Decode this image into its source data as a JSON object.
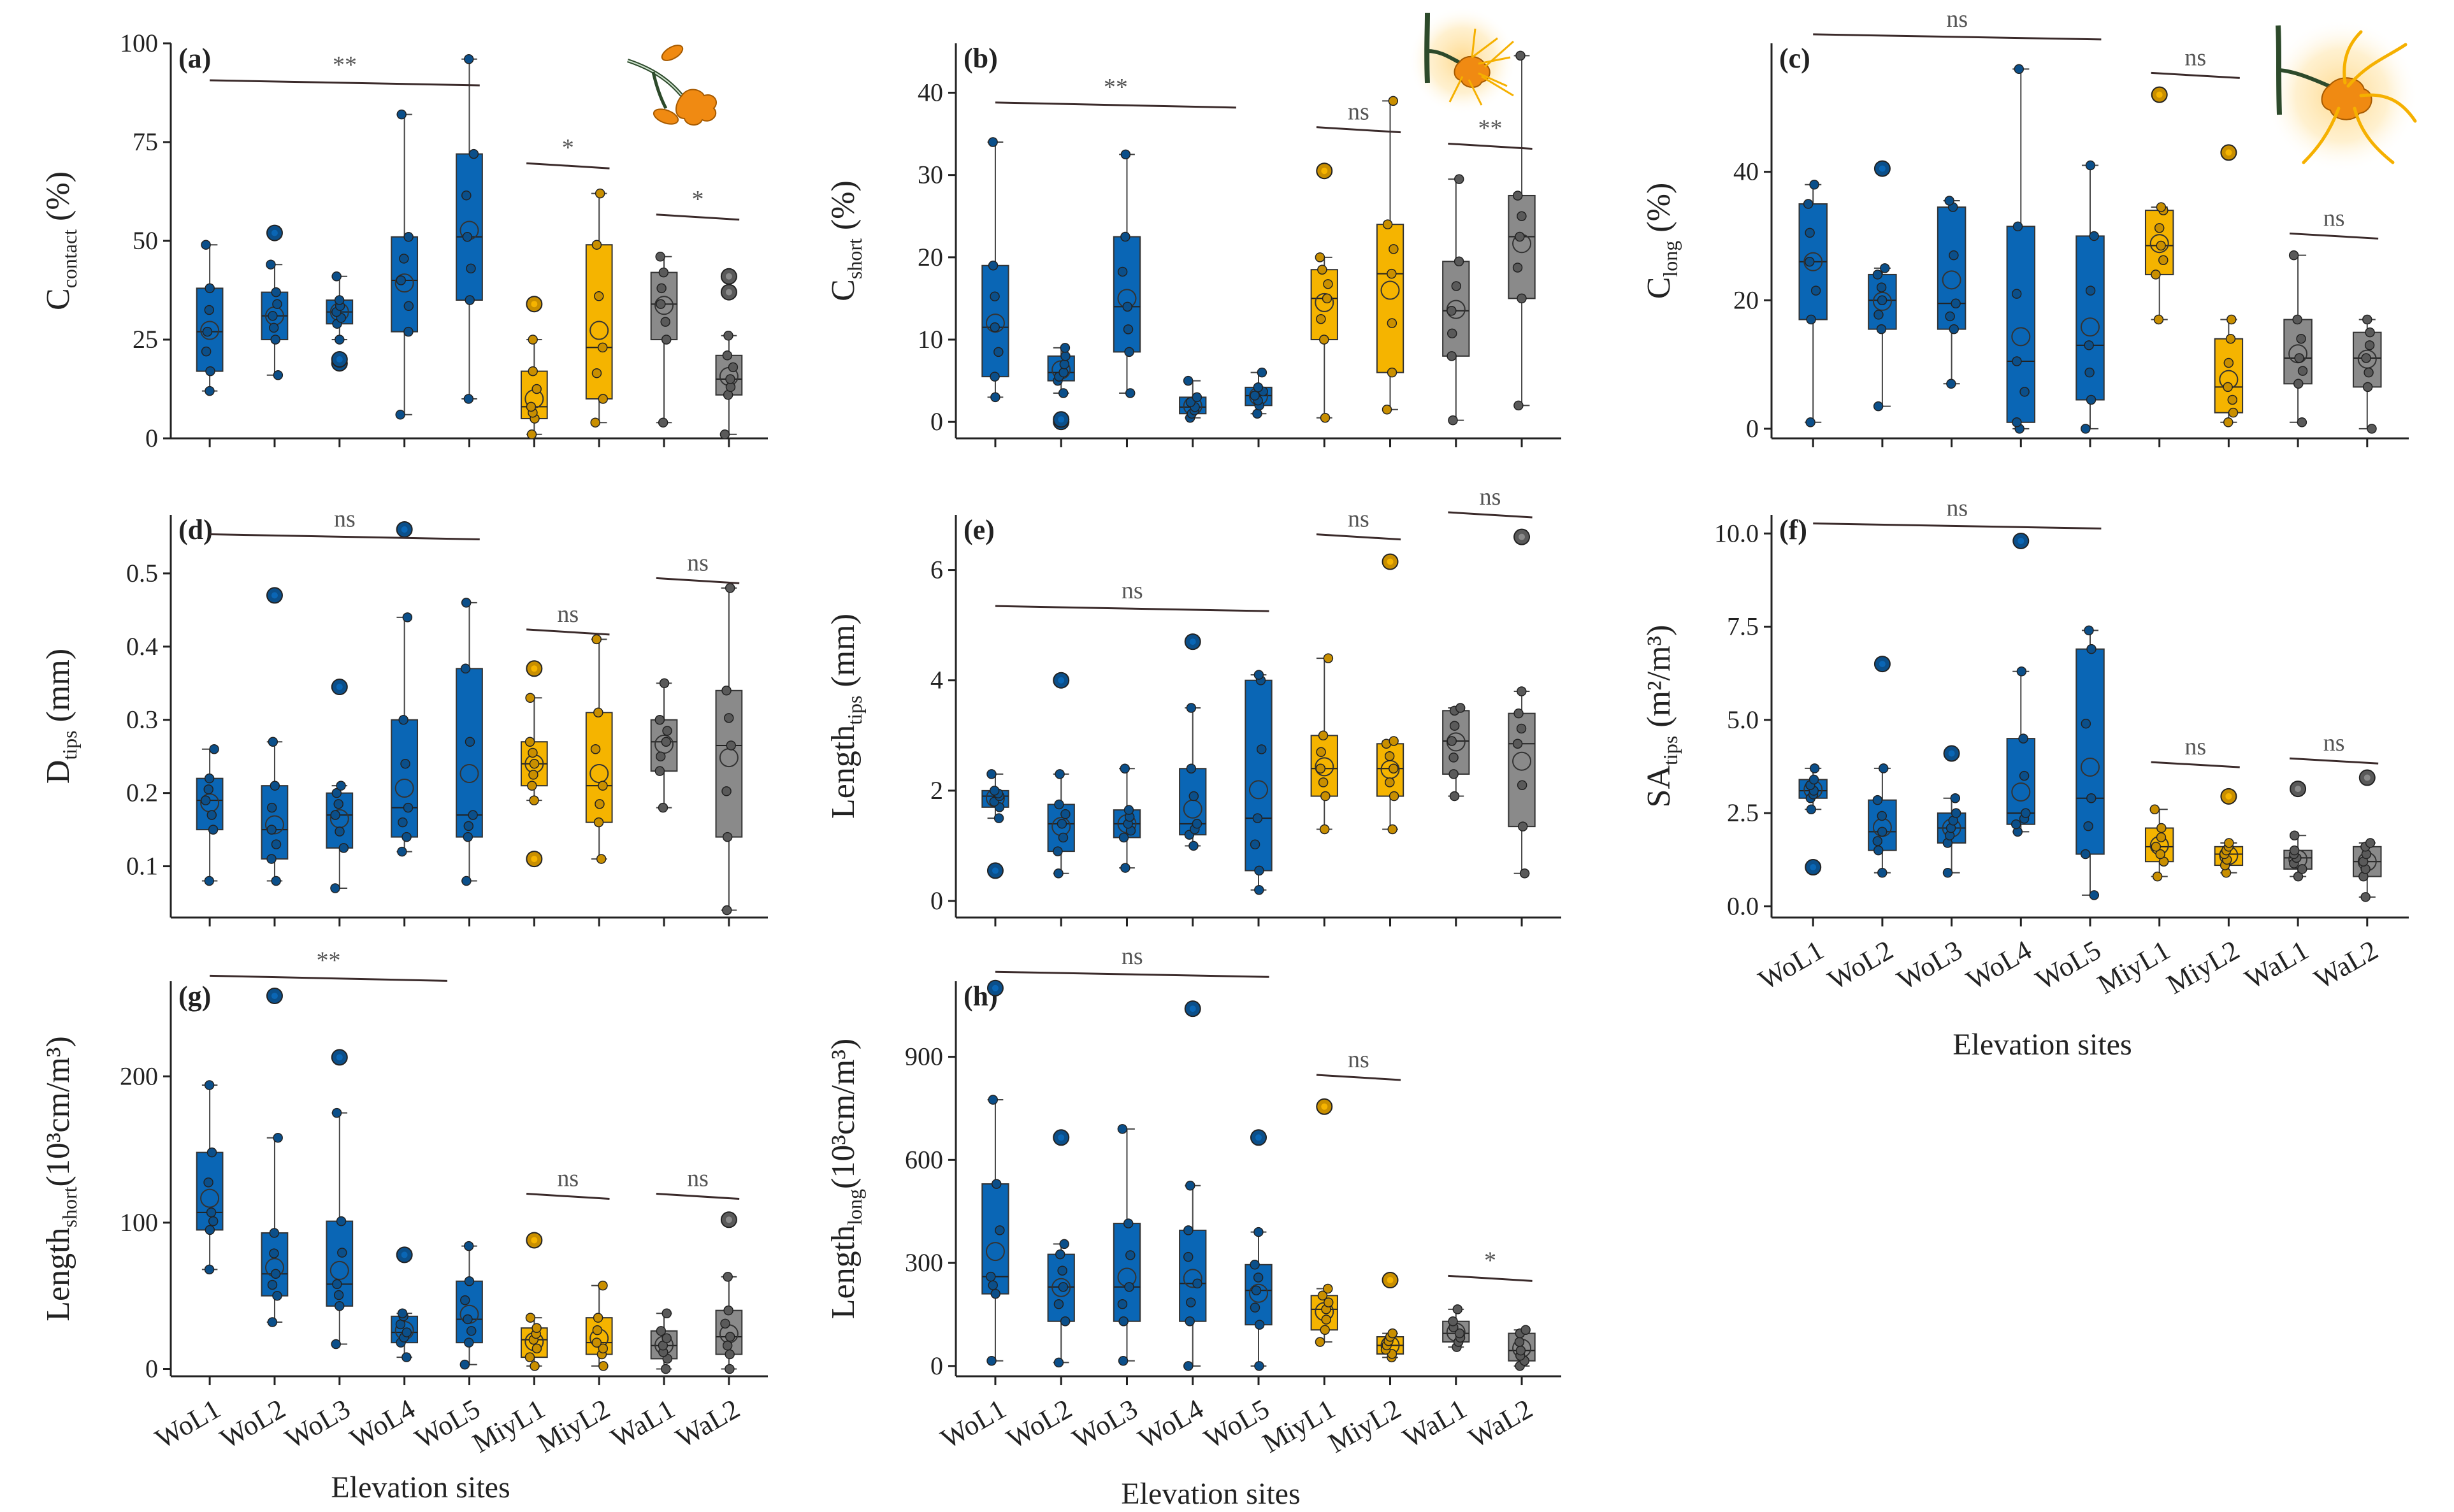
{
  "sites": [
    "WoL1",
    "WoL2",
    "WoL3",
    "WoL4",
    "WoL5",
    "MiyL1",
    "MiyL2",
    "WaL1",
    "WaL2"
  ],
  "group_colors": {
    "Wo": "#0a66b5",
    "Miy": "#f5b400",
    "Wa": "#8a8a8a"
  },
  "point_colors": {
    "Wo": "#0b4f8a",
    "Miy": "#c98f00",
    "Wa": "#5a5a5a"
  },
  "shown_xlabel": "Elevation sites",
  "icons": [
    "contact-exploration-icon",
    "short-distance-exploration-icon",
    "long-distance-exploration-icon"
  ],
  "chart_data": [
    {
      "type": "box",
      "panel": "(a)",
      "ylabel_main": "C",
      "ylabel_sub": "contact",
      "ylabel_unit": " (%)",
      "ylim": [
        0,
        100
      ],
      "yticks": [
        0,
        25,
        50,
        75,
        100
      ],
      "categories": [
        "WoL1",
        "WoL2",
        "WoL3",
        "WoL4",
        "WoL5",
        "MiyL1",
        "MiyL2",
        "WaL1",
        "WaL2"
      ],
      "boxes": [
        {
          "min": 12,
          "q1": 17,
          "median": 27,
          "q3": 38,
          "max": 49
        },
        {
          "min": 16,
          "q1": 25,
          "median": 31,
          "q3": 37,
          "max": 44,
          "outliers": [
            52
          ]
        },
        {
          "min": 25,
          "q1": 29,
          "median": 32,
          "q3": 35,
          "max": 41,
          "outliers": [
            19,
            20
          ]
        },
        {
          "min": 6,
          "q1": 27,
          "median": 40,
          "q3": 51,
          "max": 82
        },
        {
          "min": 10,
          "q1": 35,
          "median": 51,
          "q3": 72,
          "max": 96
        },
        {
          "min": 1,
          "q1": 5,
          "median": 8,
          "q3": 17,
          "max": 25,
          "outliers": [
            34
          ]
        },
        {
          "min": 4,
          "q1": 10,
          "median": 23,
          "q3": 49,
          "max": 62
        },
        {
          "min": 4,
          "q1": 25,
          "median": 34,
          "q3": 42,
          "max": 46
        },
        {
          "min": 1,
          "q1": 11,
          "median": 15,
          "q3": 21,
          "max": 26,
          "outliers": [
            37,
            41
          ]
        }
      ],
      "significance": [
        {
          "from": 0,
          "to": 4,
          "label": "**",
          "y": 90
        },
        {
          "from": 5,
          "to": 6,
          "label": "*",
          "y": 69
        },
        {
          "from": 7,
          "to": 8,
          "label": "*",
          "y": 56
        }
      ]
    },
    {
      "type": "box",
      "panel": "(b)",
      "ylabel_main": "C",
      "ylabel_sub": "short",
      "ylabel_unit": " (%)",
      "ylim": [
        -2,
        46
      ],
      "yticks": [
        0,
        10,
        20,
        30,
        40
      ],
      "categories": [
        "WoL1",
        "WoL2",
        "WoL3",
        "WoL4",
        "WoL5",
        "MiyL1",
        "MiyL2",
        "WaL1",
        "WaL2"
      ],
      "boxes": [
        {
          "min": 3,
          "q1": 5.5,
          "median": 11.5,
          "q3": 19,
          "max": 34
        },
        {
          "min": 3.5,
          "q1": 5,
          "median": 6,
          "q3": 8,
          "max": 9,
          "outliers": [
            0,
            0.3
          ]
        },
        {
          "min": 3.5,
          "q1": 8.5,
          "median": 14,
          "q3": 22.5,
          "max": 32.5
        },
        {
          "min": 0.5,
          "q1": 1,
          "median": 1.8,
          "q3": 3,
          "max": 5
        },
        {
          "min": 1,
          "q1": 2,
          "median": 3.2,
          "q3": 4.2,
          "max": 6
        },
        {
          "min": 0.5,
          "q1": 10,
          "median": 15,
          "q3": 18.5,
          "max": 20,
          "outliers": [
            30.5
          ]
        },
        {
          "min": 1.5,
          "q1": 6,
          "median": 18,
          "q3": 24,
          "max": 39
        },
        {
          "min": 0.2,
          "q1": 8,
          "median": 13.5,
          "q3": 19.5,
          "max": 29.5
        },
        {
          "min": 2,
          "q1": 15,
          "median": 22.5,
          "q3": 27.5,
          "max": 44.5
        }
      ],
      "significance": [
        {
          "from": 0,
          "to": 3.5,
          "label": "**",
          "y": 38.5
        },
        {
          "from": 5,
          "to": 6,
          "label": "ns",
          "y": 35.5
        },
        {
          "from": 7,
          "to": 8,
          "label": "**",
          "y": 33.5
        }
      ]
    },
    {
      "type": "box",
      "panel": "(c)",
      "ylabel_main": "C",
      "ylabel_sub": "long",
      "ylabel_unit": " (%)",
      "ylim": [
        -1.5,
        60
      ],
      "yticks": [
        0,
        20,
        40
      ],
      "categories": [
        "WoL1",
        "WoL2",
        "WoL3",
        "WoL4",
        "WoL5",
        "MiyL1",
        "MiyL2",
        "WaL1",
        "WaL2"
      ],
      "boxes": [
        {
          "min": 1,
          "q1": 17,
          "median": 26,
          "q3": 35,
          "max": 38
        },
        {
          "min": 3.5,
          "q1": 15.5,
          "median": 20,
          "q3": 24,
          "max": 25,
          "outliers": [
            40.5
          ]
        },
        {
          "min": 7,
          "q1": 15.5,
          "median": 19.5,
          "q3": 34.5,
          "max": 35.5
        },
        {
          "min": 0,
          "q1": 1,
          "median": 10.5,
          "q3": 31.5,
          "max": 56
        },
        {
          "min": 0,
          "q1": 4.5,
          "median": 13,
          "q3": 30,
          "max": 41
        },
        {
          "min": 17,
          "q1": 24,
          "median": 28.5,
          "q3": 34,
          "max": 34.5,
          "outliers": [
            52
          ]
        },
        {
          "min": 1,
          "q1": 2.5,
          "median": 6.5,
          "q3": 14,
          "max": 17,
          "outliers": [
            43
          ]
        },
        {
          "min": 1,
          "q1": 7,
          "median": 11,
          "q3": 17,
          "max": 27
        },
        {
          "min": 0,
          "q1": 6.5,
          "median": 11,
          "q3": 15,
          "max": 17
        }
      ],
      "significance": [
        {
          "from": 0,
          "to": 4,
          "label": "ns",
          "y": 61
        },
        {
          "from": 5,
          "to": 6,
          "label": "ns",
          "y": 55
        },
        {
          "from": 7,
          "to": 8,
          "label": "ns",
          "y": 30
        }
      ]
    },
    {
      "type": "box",
      "panel": "(d)",
      "ylabel_main": "D",
      "ylabel_sub": "tips",
      "ylabel_unit": " (mm)",
      "ylim": [
        0.03,
        0.58
      ],
      "yticks": [
        0.1,
        0.2,
        0.3,
        0.4,
        0.5
      ],
      "categories": [
        "WoL1",
        "WoL2",
        "WoL3",
        "WoL4",
        "WoL5",
        "MiyL1",
        "MiyL2",
        "WaL1",
        "WaL2"
      ],
      "boxes": [
        {
          "min": 0.08,
          "q1": 0.15,
          "median": 0.19,
          "q3": 0.22,
          "max": 0.26
        },
        {
          "min": 0.08,
          "q1": 0.11,
          "median": 0.15,
          "q3": 0.21,
          "max": 0.27,
          "outliers": [
            0.47
          ]
        },
        {
          "min": 0.07,
          "q1": 0.125,
          "median": 0.17,
          "q3": 0.2,
          "max": 0.21,
          "outliers": [
            0.345
          ]
        },
        {
          "min": 0.12,
          "q1": 0.14,
          "median": 0.18,
          "q3": 0.3,
          "max": 0.44,
          "outliers": [
            0.56
          ]
        },
        {
          "min": 0.08,
          "q1": 0.14,
          "median": 0.17,
          "q3": 0.37,
          "max": 0.46
        },
        {
          "min": 0.19,
          "q1": 0.21,
          "median": 0.24,
          "q3": 0.27,
          "max": 0.33,
          "outliers": [
            0.37,
            0.11
          ]
        },
        {
          "min": 0.11,
          "q1": 0.16,
          "median": 0.21,
          "q3": 0.31,
          "max": 0.41
        },
        {
          "min": 0.18,
          "q1": 0.23,
          "median": 0.27,
          "q3": 0.3,
          "max": 0.35
        },
        {
          "min": 0.04,
          "q1": 0.14,
          "median": 0.265,
          "q3": 0.34,
          "max": 0.48
        }
      ],
      "significance": [
        {
          "from": 0,
          "to": 4,
          "label": "ns",
          "y": 0.55
        },
        {
          "from": 5,
          "to": 6,
          "label": "ns",
          "y": 0.42
        },
        {
          "from": 7,
          "to": 8,
          "label": "ns",
          "y": 0.49
        }
      ]
    },
    {
      "type": "box",
      "panel": "(e)",
      "ylabel_main": "Length",
      "ylabel_sub": "tips",
      "ylabel_unit": " (mm)",
      "ylim": [
        -0.3,
        7
      ],
      "yticks": [
        0,
        2,
        4,
        6
      ],
      "categories": [
        "WoL1",
        "WoL2",
        "WoL3",
        "WoL4",
        "WoL5",
        "MiyL1",
        "MiyL2",
        "WaL1",
        "WaL2"
      ],
      "boxes": [
        {
          "min": 1.5,
          "q1": 1.7,
          "median": 1.9,
          "q3": 2.0,
          "max": 2.3,
          "outliers": [
            0.55
          ]
        },
        {
          "min": 0.5,
          "q1": 0.9,
          "median": 1.4,
          "q3": 1.75,
          "max": 2.3,
          "outliers": [
            4.0
          ]
        },
        {
          "min": 0.6,
          "q1": 1.15,
          "median": 1.4,
          "q3": 1.65,
          "max": 2.4
        },
        {
          "min": 1.0,
          "q1": 1.2,
          "median": 1.4,
          "q3": 2.4,
          "max": 3.5,
          "outliers": [
            4.7
          ]
        },
        {
          "min": 0.2,
          "q1": 0.55,
          "median": 1.5,
          "q3": 4.0,
          "max": 4.1
        },
        {
          "min": 1.3,
          "q1": 1.9,
          "median": 2.4,
          "q3": 3.0,
          "max": 4.4
        },
        {
          "min": 1.3,
          "q1": 1.9,
          "median": 2.4,
          "q3": 2.85,
          "max": 2.9,
          "outliers": [
            6.15
          ]
        },
        {
          "min": 1.9,
          "q1": 2.3,
          "median": 2.9,
          "q3": 3.45,
          "max": 3.5
        },
        {
          "min": 0.5,
          "q1": 1.35,
          "median": 2.85,
          "q3": 3.4,
          "max": 3.8,
          "outliers": [
            6.6
          ]
        }
      ],
      "significance": [
        {
          "from": 0,
          "to": 4,
          "label": "ns",
          "y": 5.3
        },
        {
          "from": 5,
          "to": 6,
          "label": "ns",
          "y": 6.6
        },
        {
          "from": 7,
          "to": 8,
          "label": "ns",
          "y": 7.0
        }
      ]
    },
    {
      "type": "box",
      "panel": "(f)",
      "ylabel_main": "SA",
      "ylabel_sub": "tips",
      "ylabel_unit": " (m²/m³)",
      "ylim": [
        -0.3,
        10.5
      ],
      "yticks": [
        0.0,
        2.5,
        5.0,
        7.5,
        10.0
      ],
      "ytick_labels": [
        "0.0",
        "2.5",
        "5.0",
        "7.5",
        "10.0"
      ],
      "categories": [
        "WoL1",
        "WoL2",
        "WoL3",
        "WoL4",
        "WoL5",
        "MiyL1",
        "MiyL2",
        "WaL1",
        "WaL2"
      ],
      "boxes": [
        {
          "min": 2.6,
          "q1": 2.9,
          "median": 3.1,
          "q3": 3.4,
          "max": 3.7,
          "outliers": [
            1.05
          ]
        },
        {
          "min": 0.9,
          "q1": 1.5,
          "median": 2.0,
          "q3": 2.85,
          "max": 3.7,
          "outliers": [
            6.5
          ]
        },
        {
          "min": 0.9,
          "q1": 1.7,
          "median": 2.1,
          "q3": 2.5,
          "max": 2.9,
          "outliers": [
            4.1
          ]
        },
        {
          "min": 2.0,
          "q1": 2.2,
          "median": 2.5,
          "q3": 4.5,
          "max": 6.3,
          "outliers": [
            9.8
          ]
        },
        {
          "min": 0.3,
          "q1": 1.4,
          "median": 2.9,
          "q3": 6.9,
          "max": 7.4
        },
        {
          "min": 0.8,
          "q1": 1.2,
          "median": 1.6,
          "q3": 2.1,
          "max": 2.6
        },
        {
          "min": 0.9,
          "q1": 1.1,
          "median": 1.4,
          "q3": 1.6,
          "max": 1.7,
          "outliers": [
            2.95
          ]
        },
        {
          "min": 0.8,
          "q1": 1.0,
          "median": 1.3,
          "q3": 1.5,
          "max": 1.9,
          "outliers": [
            3.15
          ]
        },
        {
          "min": 0.25,
          "q1": 0.8,
          "median": 1.2,
          "q3": 1.6,
          "max": 1.7,
          "outliers": [
            3.45
          ]
        }
      ],
      "significance": [
        {
          "from": 0,
          "to": 4,
          "label": "ns",
          "y": 10.2
        },
        {
          "from": 5,
          "to": 6,
          "label": "ns",
          "y": 3.8
        },
        {
          "from": 7,
          "to": 8,
          "label": "ns",
          "y": 3.9
        }
      ]
    },
    {
      "type": "box",
      "panel": "(g)",
      "ylabel_main": "Length",
      "ylabel_sub": "short",
      "ylabel_unit": "(10³cm/m³)",
      "ylim": [
        -5,
        265
      ],
      "yticks": [
        0,
        100,
        200
      ],
      "categories": [
        "WoL1",
        "WoL2",
        "WoL3",
        "WoL4",
        "WoL5",
        "MiyL1",
        "MiyL2",
        "WaL1",
        "WaL2"
      ],
      "boxes": [
        {
          "min": 68,
          "q1": 95,
          "median": 107,
          "q3": 148,
          "max": 194
        },
        {
          "min": 32,
          "q1": 50,
          "median": 65,
          "q3": 93,
          "max": 158,
          "outliers": [
            255
          ]
        },
        {
          "min": 17,
          "q1": 43,
          "median": 58,
          "q3": 101,
          "max": 175,
          "outliers": [
            213
          ]
        },
        {
          "min": 8,
          "q1": 18,
          "median": 25,
          "q3": 36,
          "max": 38,
          "outliers": [
            78
          ]
        },
        {
          "min": 3,
          "q1": 18,
          "median": 34,
          "q3": 60,
          "max": 84
        },
        {
          "min": 2,
          "q1": 8,
          "median": 20,
          "q3": 28,
          "max": 35,
          "outliers": [
            88
          ]
        },
        {
          "min": 2,
          "q1": 10,
          "median": 18,
          "q3": 35,
          "max": 57
        },
        {
          "min": 0,
          "q1": 7,
          "median": 16,
          "q3": 26,
          "max": 38
        },
        {
          "min": 0,
          "q1": 10,
          "median": 22,
          "q3": 40,
          "max": 63,
          "outliers": [
            102
          ]
        }
      ],
      "significance": [
        {
          "from": 0,
          "to": 3.5,
          "label": "**",
          "y": 267
        },
        {
          "from": 5,
          "to": 6,
          "label": "ns",
          "y": 118
        },
        {
          "from": 7,
          "to": 8,
          "label": "ns",
          "y": 118
        }
      ]
    },
    {
      "type": "box",
      "panel": "(h)",
      "ylabel_main": "Length",
      "ylabel_sub": "long",
      "ylabel_unit": "(10³cm/m³)",
      "ylim": [
        -30,
        1120
      ],
      "yticks": [
        0,
        300,
        600,
        900
      ],
      "categories": [
        "WoL1",
        "WoL2",
        "WoL3",
        "WoL4",
        "WoL5",
        "MiyL1",
        "MiyL2",
        "WaL1",
        "WaL2"
      ],
      "boxes": [
        {
          "min": 15,
          "q1": 210,
          "median": 260,
          "q3": 530,
          "max": 775,
          "outliers": [
            1100
          ]
        },
        {
          "min": 10,
          "q1": 130,
          "median": 230,
          "q3": 325,
          "max": 355,
          "outliers": [
            665
          ]
        },
        {
          "min": 15,
          "q1": 130,
          "median": 230,
          "q3": 415,
          "max": 690
        },
        {
          "min": 0,
          "q1": 130,
          "median": 240,
          "q3": 395,
          "max": 525,
          "outliers": [
            1040
          ]
        },
        {
          "min": 0,
          "q1": 120,
          "median": 220,
          "q3": 295,
          "max": 390,
          "outliers": [
            665
          ]
        },
        {
          "min": 70,
          "q1": 105,
          "median": 165,
          "q3": 205,
          "max": 225,
          "outliers": [
            755
          ]
        },
        {
          "min": 25,
          "q1": 35,
          "median": 60,
          "q3": 85,
          "max": 95,
          "outliers": [
            250
          ]
        },
        {
          "min": 55,
          "q1": 70,
          "median": 95,
          "q3": 130,
          "max": 165
        },
        {
          "min": 0,
          "q1": 15,
          "median": 45,
          "q3": 95,
          "max": 105
        }
      ],
      "significance": [
        {
          "from": 0,
          "to": 4,
          "label": "ns",
          "y": 1140
        },
        {
          "from": 5,
          "to": 6,
          "label": "ns",
          "y": 840
        },
        {
          "from": 7,
          "to": 8,
          "label": "*",
          "y": 255
        }
      ]
    }
  ]
}
